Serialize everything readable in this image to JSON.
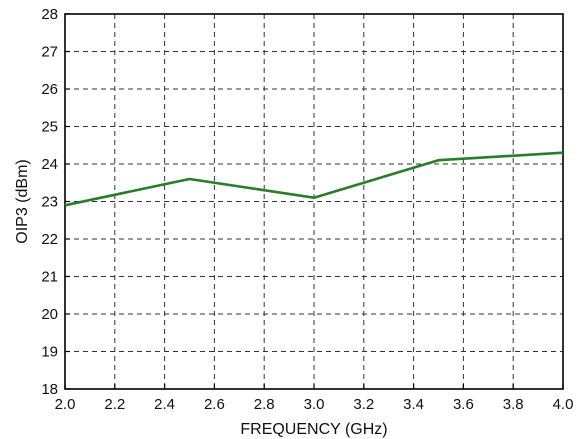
{
  "chart_data": {
    "type": "line",
    "xlabel": "FREQUENCY (GHz)",
    "ylabel": "OIP3 (dBm)",
    "xlim": [
      2.0,
      4.0
    ],
    "ylim": [
      18,
      28
    ],
    "xticks": [
      "2.0",
      "2.2",
      "2.4",
      "2.6",
      "2.8",
      "3.0",
      "3.2",
      "3.4",
      "3.6",
      "3.8",
      "4.0"
    ],
    "yticks": [
      "18",
      "19",
      "20",
      "21",
      "22",
      "23",
      "24",
      "25",
      "26",
      "27",
      "28"
    ],
    "grid": true,
    "series": [
      {
        "x": [
          2.0,
          2.5,
          3.0,
          3.5,
          4.0
        ],
        "y": [
          22.9,
          23.6,
          23.1,
          24.1,
          24.3
        ],
        "color": "#2a7d2a"
      }
    ]
  }
}
